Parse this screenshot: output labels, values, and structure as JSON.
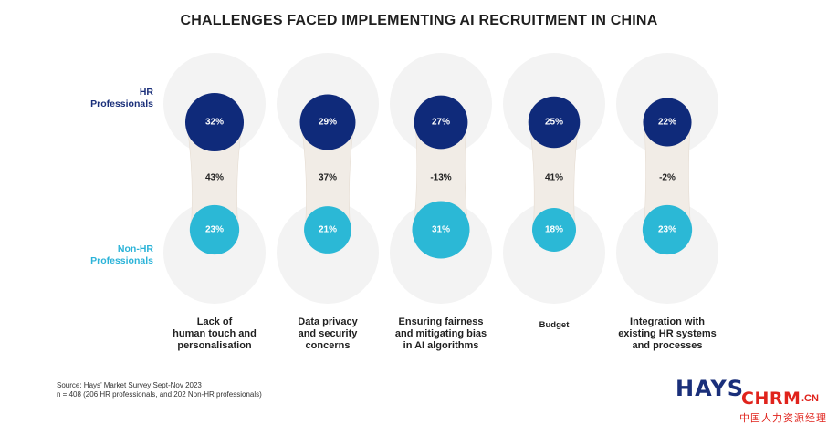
{
  "title": "CHALLENGES FACED IMPLEMENTING AI RECRUITMENT IN CHINA",
  "row_labels": {
    "hr": "HR\nProfessionals",
    "non_hr": "Non-HR\nProfessionals"
  },
  "colors": {
    "hr": "#0f2a7a",
    "non_hr": "#2bb8d6",
    "halo": "#f3f3f3",
    "connector": "#f1ece6"
  },
  "chart_data": {
    "type": "bubble-comparison",
    "categories": [
      "Lack of\nhuman touch and\npersonalisation",
      "Data privacy\nand security\nconcerns",
      "Ensuring fairness\nand mitigating bias\nin AI algorithms",
      "Budget",
      "Integration with\nexisting HR systems\nand processes"
    ],
    "series": [
      {
        "name": "HR Professionals",
        "values": [
          32,
          29,
          27,
          25,
          22
        ]
      },
      {
        "name": "Non-HR Professionals",
        "values": [
          23,
          21,
          31,
          18,
          23
        ]
      }
    ],
    "value_labels": {
      "hr": [
        "32%",
        "29%",
        "27%",
        "25%",
        "22%"
      ],
      "non_hr": [
        "23%",
        "21%",
        "31%",
        "18%",
        "23%"
      ],
      "difference": [
        "43%",
        "37%",
        "-13%",
        "41%",
        "-2%"
      ]
    },
    "difference": [
      43,
      37,
      -13,
      41,
      -2
    ]
  },
  "source": "Source: Hays’ Market Survey Sept-Nov 2023\nn = 408 (206 HR professionals, and 202 Non-HR professionals)",
  "logo": {
    "hays": "HAYS",
    "chrm": "CHRM",
    "chrm_cn": ".CN",
    "chrm_sub": "中国人力资源经理"
  }
}
